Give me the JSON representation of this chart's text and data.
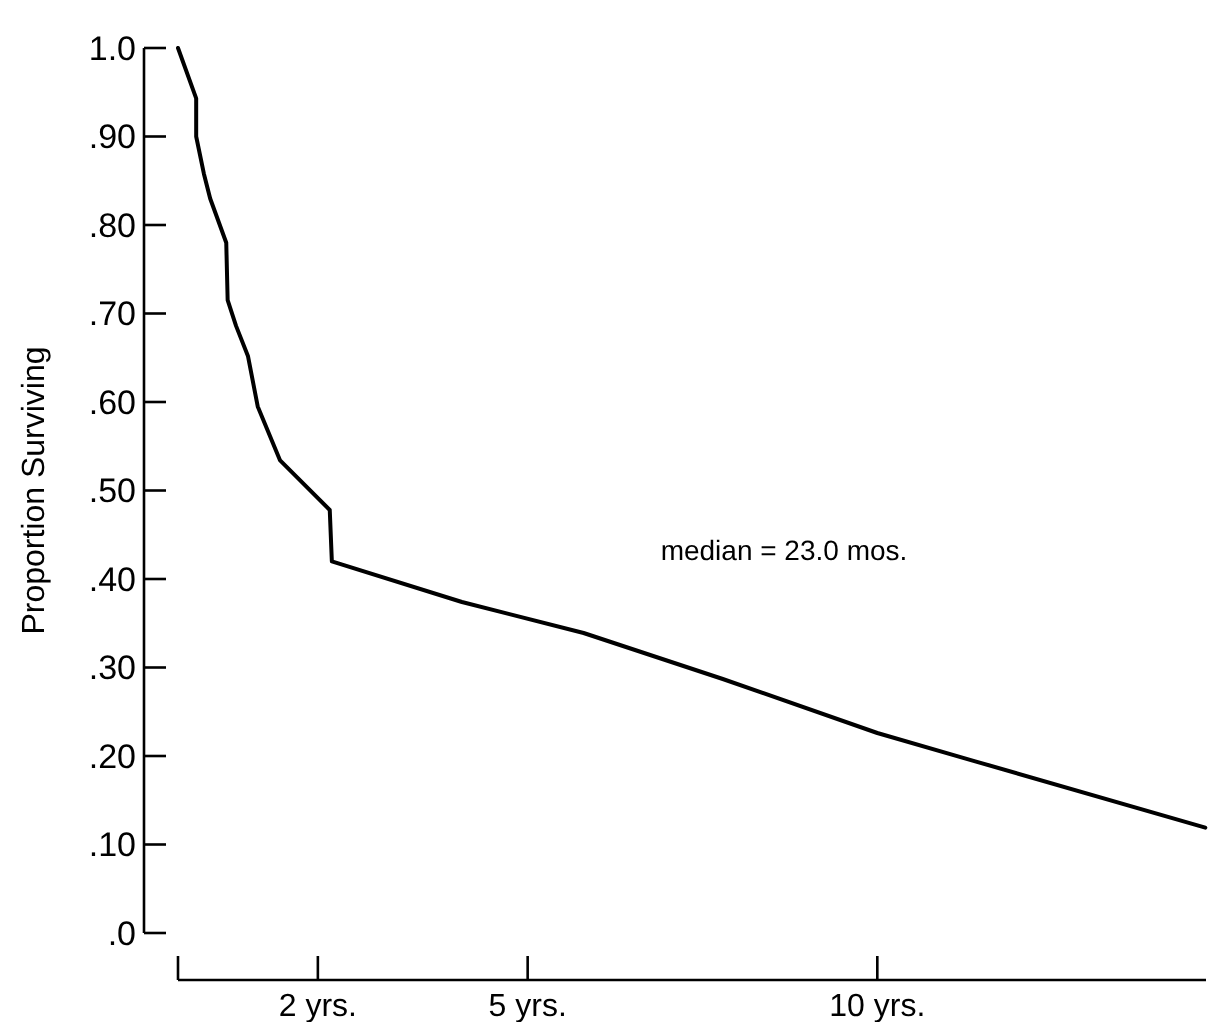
{
  "chart_data": {
    "type": "line",
    "ylabel": "Proportion Surviving",
    "x": [
      0,
      0.26,
      0.26,
      0.37,
      0.46,
      0.69,
      0.71,
      0.83,
      1.0,
      1.14,
      1.46,
      2.17,
      2.2,
      4.06,
      5.8,
      7.79,
      10,
      11.4,
      14.69
    ],
    "values": [
      1.0,
      0.943,
      0.9,
      0.858,
      0.83,
      0.78,
      0.715,
      0.686,
      0.652,
      0.595,
      0.534,
      0.478,
      0.42,
      0.374,
      0.339,
      0.287,
      0.226,
      0.194,
      0.119
    ],
    "color": "#000000",
    "marker": "none",
    "line_style": "solid",
    "xlim": [
      0,
      14.7
    ],
    "xticks": [
      {
        "value": 0,
        "label": null
      },
      {
        "value": 2,
        "label": "2 yrs."
      },
      {
        "value": 5,
        "label": "5 yrs."
      },
      {
        "value": 10,
        "label": "10 yrs."
      }
    ],
    "ylim": [
      0,
      1.0
    ],
    "yticks": [
      {
        "value": 0,
        "label": ".0"
      },
      {
        "value": 0.1,
        "label": ".10"
      },
      {
        "value": 0.2,
        "label": ".20"
      },
      {
        "value": 0.3,
        "label": ".30"
      },
      {
        "value": 0.4,
        "label": ".40"
      },
      {
        "value": 0.5,
        "label": ".50"
      },
      {
        "value": 0.6,
        "label": ".60"
      },
      {
        "value": 0.7,
        "label": ".70"
      },
      {
        "value": 0.8,
        "label": ".80"
      },
      {
        "value": 0.9,
        "label": ".90"
      },
      {
        "value": 1.0,
        "label": "1.0"
      }
    ],
    "grid": false,
    "annotations": [
      "median = 23.0 mos."
    ]
  }
}
